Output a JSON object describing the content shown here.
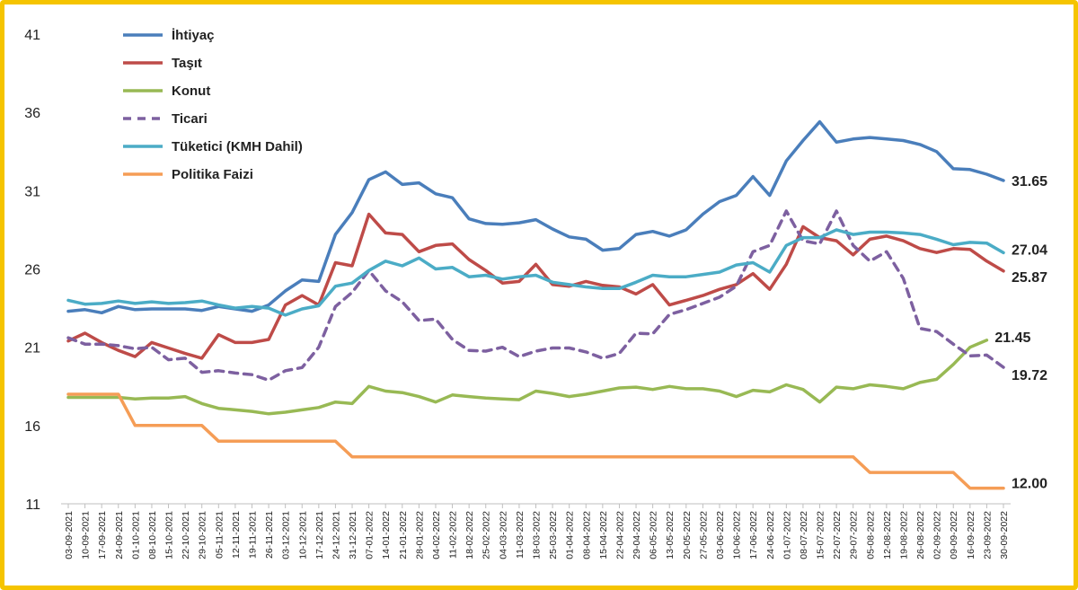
{
  "chart_data": {
    "type": "line",
    "title": "",
    "xlabel": "",
    "ylabel": "",
    "ylim": [
      11,
      41
    ],
    "yticks": [
      "41",
      "36",
      "31",
      "26",
      "21",
      "16",
      "11"
    ],
    "ytick_values": [
      41,
      36,
      31,
      26,
      21,
      16,
      11
    ],
    "grid": false,
    "legend_position": "top-left",
    "x": [
      "03-09-2021",
      "10-09-2021",
      "17-09-2021",
      "24-09-2021",
      "01-10-2021",
      "08-10-2021",
      "15-10-2021",
      "22-10-2021",
      "29-10-2021",
      "05-11-2021",
      "12-11-2021",
      "19-11-2021",
      "26-11-2021",
      "03-12-2021",
      "10-12-2021",
      "17-12-2021",
      "24-12-2021",
      "31-12-2021",
      "07-01-2022",
      "14-01-2022",
      "21-01-2022",
      "28-01-2022",
      "04-02-2022",
      "11-02-2022",
      "18-02-2022",
      "25-02-2022",
      "04-03-2022",
      "11-03-2022",
      "18-03-2022",
      "25-03-2022",
      "01-04-2022",
      "08-04-2022",
      "15-04-2022",
      "22-04-2022",
      "29-04-2022",
      "06-05-2022",
      "13-05-2022",
      "20-05-2022",
      "27-05-2022",
      "03-06-2022",
      "10-06-2022",
      "17-06-2022",
      "24-06-2022",
      "01-07-2022",
      "08-07-2022",
      "15-07-2022",
      "22-07-2022",
      "29-07-2022",
      "05-08-2022",
      "12-08-2022",
      "19-08-2022",
      "26-08-2022",
      "02-09-2022",
      "09-09-2022",
      "16-09-2022",
      "23-09-2022",
      "30-09-2022"
    ],
    "x_tick_labels": [
      "03-09-2021",
      "10-09-2021",
      "17-09-2021",
      "24-09-2021",
      "01-10-2021",
      "08-10-2021",
      "15-10-2021",
      "22-10-2021",
      "29-10-2021",
      "05-11-2021",
      "12-11-2021",
      "19-11-2021",
      "26-11-2021",
      "03-12-2021",
      "10-12-2021",
      "17-12-2021",
      "24-12-2021",
      "31-12-2021",
      "07-01-2022",
      "14-01-2022",
      "21-01-2022",
      "28-01-2022",
      "04-02-2022",
      "11-02-2022",
      "18-02-2022",
      "25-02-2022",
      "04-03-2022",
      "11-03-2022",
      "18-03-2022",
      "25-03-2022",
      "01-04-2022",
      "08-04-2022",
      "15-04-2022",
      "22-04-2022",
      "29-04-2022",
      "06-05-2022",
      "13-05-2022",
      "20-05-2022",
      "27-05-2022",
      "03-06-2022",
      "10-06-2022",
      "17-06-2022",
      "24-06-2022",
      "01-07-2022",
      "08-07-2022",
      "15-07-2022",
      "22-07-2022",
      "29-07-2022",
      "05-08-2022",
      "12-08-2022",
      "19-08-2022",
      "26-08-2022",
      "02-09-2022",
      "09-09-2022",
      "16-09-2022",
      "23-09-2022",
      "30-09-2022"
    ],
    "series": [
      {
        "name": "İhtiyaç",
        "color": "#4a7ebb",
        "dash": false,
        "end_label": "31.65",
        "values": [
          23.3,
          23.4,
          23.2,
          23.6,
          23.4,
          23.45,
          23.45,
          23.45,
          23.35,
          23.6,
          23.45,
          23.3,
          23.7,
          24.6,
          25.3,
          25.2,
          28.2,
          29.6,
          31.7,
          32.2,
          31.4,
          31.5,
          30.8,
          30.55,
          29.2,
          28.9,
          28.85,
          28.95,
          29.15,
          28.55,
          28.05,
          27.9,
          27.2,
          27.3,
          28.2,
          28.4,
          28.1,
          28.5,
          29.5,
          30.3,
          30.7,
          31.9,
          30.7,
          32.9,
          34.2,
          35.4,
          34.1,
          34.3,
          34.4,
          34.3,
          34.2,
          33.95,
          33.5,
          32.4,
          32.35,
          32.05,
          31.65
        ]
      },
      {
        "name": "Taşıt",
        "color": "#be4b48",
        "dash": false,
        "end_label": "25.87",
        "values": [
          21.4,
          21.9,
          21.3,
          20.8,
          20.4,
          21.3,
          20.95,
          20.6,
          20.3,
          21.8,
          21.3,
          21.3,
          21.5,
          23.7,
          24.3,
          23.7,
          26.4,
          26.2,
          29.5,
          28.3,
          28.2,
          27.1,
          27.5,
          27.6,
          26.6,
          25.9,
          25.1,
          25.2,
          26.3,
          25.0,
          24.9,
          25.2,
          24.95,
          24.85,
          24.4,
          25.0,
          23.7,
          24.0,
          24.3,
          24.7,
          25.0,
          25.7,
          24.7,
          26.3,
          28.7,
          28.0,
          27.8,
          26.9,
          27.9,
          28.1,
          27.8,
          27.3,
          27.05,
          27.3,
          27.25,
          26.5,
          25.87
        ]
      },
      {
        "name": "Konut",
        "color": "#98b954",
        "dash": false,
        "end_label": "21.45",
        "values": [
          17.8,
          17.8,
          17.8,
          17.8,
          17.7,
          17.75,
          17.75,
          17.85,
          17.4,
          17.1,
          17.0,
          16.9,
          16.75,
          16.85,
          17.0,
          17.15,
          17.5,
          17.4,
          18.5,
          18.2,
          18.1,
          17.85,
          17.5,
          17.95,
          17.85,
          17.75,
          17.7,
          17.65,
          18.2,
          18.05,
          17.85,
          18.0,
          18.2,
          18.4,
          18.45,
          18.3,
          18.5,
          18.35,
          18.35,
          18.2,
          17.85,
          18.25,
          18.15,
          18.6,
          18.3,
          17.5,
          18.45,
          18.35,
          18.6,
          18.5,
          18.35,
          18.75,
          18.95,
          19.9,
          21.0,
          21.45,
          null
        ]
      },
      {
        "name": "Ticari",
        "color": "#7d60a0",
        "dash": true,
        "end_label": "19.72",
        "values": [
          21.6,
          21.2,
          21.2,
          21.1,
          20.9,
          21.0,
          20.2,
          20.3,
          19.4,
          19.5,
          19.35,
          19.25,
          18.9,
          19.5,
          19.7,
          21.0,
          23.6,
          24.5,
          25.9,
          24.6,
          23.9,
          22.7,
          22.8,
          21.5,
          20.8,
          20.75,
          21.0,
          20.4,
          20.75,
          20.95,
          20.95,
          20.7,
          20.3,
          20.6,
          21.9,
          21.85,
          23.1,
          23.4,
          23.8,
          24.2,
          24.9,
          27.1,
          27.5,
          29.7,
          27.8,
          27.6,
          29.7,
          27.5,
          26.5,
          27.1,
          25.4,
          22.2,
          22.0,
          21.2,
          20.45,
          20.5,
          19.72
        ]
      },
      {
        "name": "Tüketici (KMH Dahil)",
        "color": "#4bacc6",
        "dash": false,
        "end_label": "27.04",
        "values": [
          24.0,
          23.75,
          23.8,
          23.95,
          23.8,
          23.9,
          23.8,
          23.85,
          23.95,
          23.7,
          23.5,
          23.6,
          23.5,
          23.05,
          23.45,
          23.65,
          24.9,
          25.1,
          25.9,
          26.5,
          26.2,
          26.7,
          26.0,
          26.1,
          25.5,
          25.6,
          25.35,
          25.5,
          25.6,
          25.15,
          25.0,
          24.85,
          24.75,
          24.75,
          25.15,
          25.6,
          25.5,
          25.5,
          25.65,
          25.8,
          26.25,
          26.4,
          25.8,
          27.5,
          28.0,
          28.0,
          28.5,
          28.2,
          28.35,
          28.35,
          28.3,
          28.2,
          27.9,
          27.55,
          27.7,
          27.65,
          27.04
        ]
      },
      {
        "name": "Politika Faizi",
        "color": "#f59d56",
        "dash": false,
        "end_label": "12.00",
        "values": [
          18,
          18,
          18,
          18,
          16,
          16,
          16,
          16,
          16,
          15,
          15,
          15,
          15,
          15,
          15,
          15,
          15,
          14,
          14,
          14,
          14,
          14,
          14,
          14,
          14,
          14,
          14,
          14,
          14,
          14,
          14,
          14,
          14,
          14,
          14,
          14,
          14,
          14,
          14,
          14,
          14,
          14,
          14,
          14,
          14,
          14,
          14,
          14,
          13,
          13,
          13,
          13,
          13,
          13,
          12,
          12,
          12
        ]
      }
    ]
  }
}
